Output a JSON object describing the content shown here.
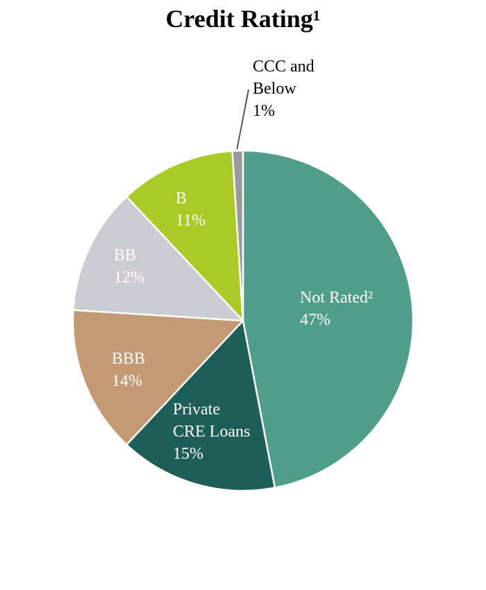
{
  "chart_data": {
    "type": "pie",
    "title": "Credit Rating¹",
    "slices": [
      {
        "name": "Not Rated²",
        "name_lines": [
          "Not Rated²"
        ],
        "value": 47,
        "label": "47%",
        "color": "#4e9e8a",
        "label_color": "#ffffff"
      },
      {
        "name": "Private CRE Loans",
        "name_lines": [
          "Private",
          "CRE Loans"
        ],
        "value": 15,
        "label": "15%",
        "color": "#1e5e59",
        "label_color": "#ffffff"
      },
      {
        "name": "BBB",
        "name_lines": [
          "BBB"
        ],
        "value": 14,
        "label": "14%",
        "color": "#c49a74",
        "label_color": "#ffffff"
      },
      {
        "name": "BB",
        "name_lines": [
          "BB"
        ],
        "value": 12,
        "label": "12%",
        "color": "#caccd2",
        "label_color": "#ffffff"
      },
      {
        "name": "B",
        "name_lines": [
          "B"
        ],
        "value": 11,
        "label": "11%",
        "color": "#a8cb28",
        "label_color": "#ffffff"
      },
      {
        "name": "CCC and Below",
        "name_lines": [
          "CCC and",
          "Below"
        ],
        "value": 1,
        "label": "1%",
        "color": "#9a9a9a",
        "label_color": "#000000"
      }
    ]
  }
}
